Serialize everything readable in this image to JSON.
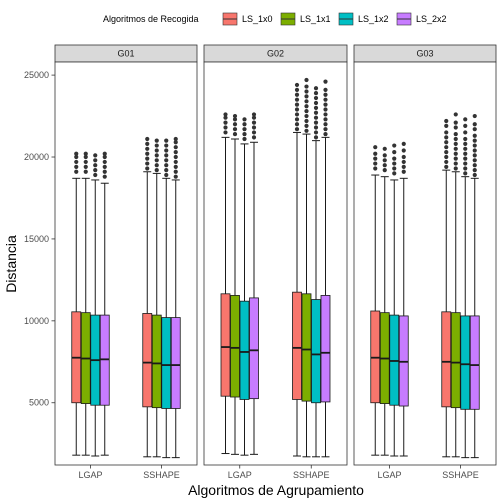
{
  "chart_data": {
    "type": "boxplot",
    "xlabel": "Algoritmos de Agrupamiento",
    "ylabel": "Distancia",
    "ylim": [
      1200,
      25800
    ],
    "yticks": [
      5000,
      10000,
      15000,
      20000,
      25000
    ],
    "legend": {
      "title": "Algoritmos de Recogida",
      "position": "top",
      "entries": [
        {
          "name": "LS_1x0",
          "color": "#F8766D"
        },
        {
          "name": "LS_1x1",
          "color": "#7CAE00"
        },
        {
          "name": "LS_1x2",
          "color": "#00BFC4"
        },
        {
          "name": "LS_2x2",
          "color": "#C77CFF"
        }
      ]
    },
    "categories": [
      "LGAP",
      "SSHAPE"
    ],
    "facets": [
      {
        "name": "G01",
        "groups": [
          {
            "category": "LGAP",
            "boxes": [
              {
                "series": "LS_1x0",
                "min": 1800,
                "q1": 5000,
                "median": 7750,
                "q3": 10550,
                "max": 18700,
                "outliers": [
                  19100,
                  19400,
                  19700,
                  20000,
                  20200
                ]
              },
              {
                "series": "LS_1x1",
                "min": 1800,
                "q1": 4950,
                "median": 7700,
                "q3": 10500,
                "max": 18700,
                "outliers": [
                  19100,
                  19400,
                  19700,
                  20000,
                  20200
                ]
              },
              {
                "series": "LS_1x2",
                "min": 1750,
                "q1": 4850,
                "median": 7600,
                "q3": 10350,
                "max": 18600,
                "outliers": [
                  18900,
                  19200,
                  19500,
                  19800,
                  20100
                ]
              },
              {
                "series": "LS_2x2",
                "min": 1800,
                "q1": 4850,
                "median": 7650,
                "q3": 10350,
                "max": 18400,
                "outliers": [
                  18800,
                  19100,
                  19400,
                  19700,
                  20000,
                  20200
                ]
              }
            ]
          },
          {
            "category": "SSHAPE",
            "boxes": [
              {
                "series": "LS_1x0",
                "min": 1700,
                "q1": 4750,
                "median": 7450,
                "q3": 10450,
                "max": 19100,
                "outliers": [
                  19300,
                  19600,
                  19900,
                  20200,
                  20500,
                  20800,
                  21100
                ]
              },
              {
                "series": "LS_1x1",
                "min": 1700,
                "q1": 4700,
                "median": 7400,
                "q3": 10350,
                "max": 19000,
                "outliers": [
                  19200,
                  19500,
                  19800,
                  20100,
                  20400,
                  20700,
                  21000
                ]
              },
              {
                "series": "LS_1x2",
                "min": 1650,
                "q1": 4650,
                "median": 7300,
                "q3": 10200,
                "max": 18700,
                "outliers": [
                  18900,
                  19200,
                  19500,
                  19800,
                  20100,
                  20400,
                  20700,
                  21000
                ]
              },
              {
                "series": "LS_2x2",
                "min": 1650,
                "q1": 4650,
                "median": 7300,
                "q3": 10200,
                "max": 18600,
                "outliers": [
                  18800,
                  19100,
                  19400,
                  19700,
                  20000,
                  20300,
                  20600,
                  20900,
                  21100
                ]
              }
            ]
          }
        ]
      },
      {
        "name": "G02",
        "groups": [
          {
            "category": "LGAP",
            "boxes": [
              {
                "series": "LS_1x0",
                "min": 1900,
                "q1": 5400,
                "median": 8400,
                "q3": 11650,
                "max": 21200,
                "outliers": [
                  21500,
                  21800,
                  22100,
                  22400,
                  22600
                ]
              },
              {
                "series": "LS_1x1",
                "min": 1850,
                "q1": 5350,
                "median": 8350,
                "q3": 11550,
                "max": 21100,
                "outliers": [
                  21400,
                  21700,
                  22000,
                  22300,
                  22500
                ]
              },
              {
                "series": "LS_1x2",
                "min": 1800,
                "q1": 5200,
                "median": 8100,
                "q3": 11200,
                "max": 20800,
                "outliers": [
                  21100,
                  21400,
                  21700,
                  22000,
                  22300
                ]
              },
              {
                "series": "LS_2x2",
                "min": 1850,
                "q1": 5250,
                "median": 8200,
                "q3": 11400,
                "max": 20900,
                "outliers": [
                  21200,
                  21500,
                  21800,
                  22100,
                  22400,
                  22600
                ]
              }
            ]
          },
          {
            "category": "SSHAPE",
            "boxes": [
              {
                "series": "LS_1x0",
                "min": 1750,
                "q1": 5200,
                "median": 8350,
                "q3": 11750,
                "max": 21500,
                "outliers": [
                  21700,
                  22000,
                  22300,
                  22600,
                  22900,
                  23200,
                  23500,
                  23800,
                  24100,
                  24400
                ]
              },
              {
                "series": "LS_1x1",
                "min": 1700,
                "q1": 5100,
                "median": 8250,
                "q3": 11650,
                "max": 21400,
                "outliers": [
                  21600,
                  21900,
                  22200,
                  22500,
                  22800,
                  23100,
                  23400,
                  23700,
                  24000,
                  24300,
                  24700
                ]
              },
              {
                "series": "LS_1x2",
                "min": 1700,
                "q1": 5000,
                "median": 7950,
                "q3": 11300,
                "max": 21000,
                "outliers": [
                  21200,
                  21500,
                  21800,
                  22100,
                  22400,
                  22700,
                  23000,
                  23300,
                  23600,
                  23900,
                  24200
                ]
              },
              {
                "series": "LS_2x2",
                "min": 1700,
                "q1": 5050,
                "median": 8050,
                "q3": 11550,
                "max": 21200,
                "outliers": [
                  21400,
                  21700,
                  22000,
                  22300,
                  22600,
                  22900,
                  23200,
                  23500,
                  23800,
                  24100,
                  24600
                ]
              }
            ]
          }
        ]
      },
      {
        "name": "G03",
        "groups": [
          {
            "category": "LGAP",
            "boxes": [
              {
                "series": "LS_1x0",
                "min": 1800,
                "q1": 5000,
                "median": 7750,
                "q3": 10600,
                "max": 18900,
                "outliers": [
                  19300,
                  19600,
                  19900,
                  20200,
                  20600
                ]
              },
              {
                "series": "LS_1x1",
                "min": 1800,
                "q1": 4950,
                "median": 7700,
                "q3": 10500,
                "max": 18800,
                "outliers": [
                  19200,
                  19500,
                  19800,
                  20100,
                  20500
                ]
              },
              {
                "series": "LS_1x2",
                "min": 1750,
                "q1": 4850,
                "median": 7550,
                "q3": 10350,
                "max": 18600,
                "outliers": [
                  19000,
                  19300,
                  19600,
                  19900,
                  20300,
                  20700
                ]
              },
              {
                "series": "LS_2x2",
                "min": 1750,
                "q1": 4800,
                "median": 7500,
                "q3": 10300,
                "max": 18700,
                "outliers": [
                  19100,
                  19400,
                  19700,
                  20000,
                  20400,
                  20800
                ]
              }
            ]
          },
          {
            "category": "SSHAPE",
            "boxes": [
              {
                "series": "LS_1x0",
                "min": 1700,
                "q1": 4750,
                "median": 7500,
                "q3": 10550,
                "max": 19200,
                "outliers": [
                  19400,
                  19700,
                  20000,
                  20300,
                  20600,
                  20900,
                  21200,
                  21500,
                  21900,
                  22200
                ]
              },
              {
                "series": "LS_1x1",
                "min": 1700,
                "q1": 4700,
                "median": 7450,
                "q3": 10500,
                "max": 19100,
                "outliers": [
                  19300,
                  19600,
                  19900,
                  20200,
                  20500,
                  20800,
                  21100,
                  21400,
                  21800,
                  22100,
                  22600
                ]
              },
              {
                "series": "LS_1x2",
                "min": 1650,
                "q1": 4600,
                "median": 7350,
                "q3": 10300,
                "max": 18800,
                "outliers": [
                  19000,
                  19300,
                  19600,
                  19900,
                  20200,
                  20500,
                  20800,
                  21100,
                  21500,
                  21900,
                  22300
                ]
              },
              {
                "series": "LS_2x2",
                "min": 1650,
                "q1": 4600,
                "median": 7300,
                "q3": 10300,
                "max": 18700,
                "outliers": [
                  18900,
                  19200,
                  19500,
                  19800,
                  20100,
                  20400,
                  20700,
                  21000,
                  21300,
                  21700,
                  22000,
                  22500
                ]
              }
            ]
          }
        ]
      }
    ]
  }
}
